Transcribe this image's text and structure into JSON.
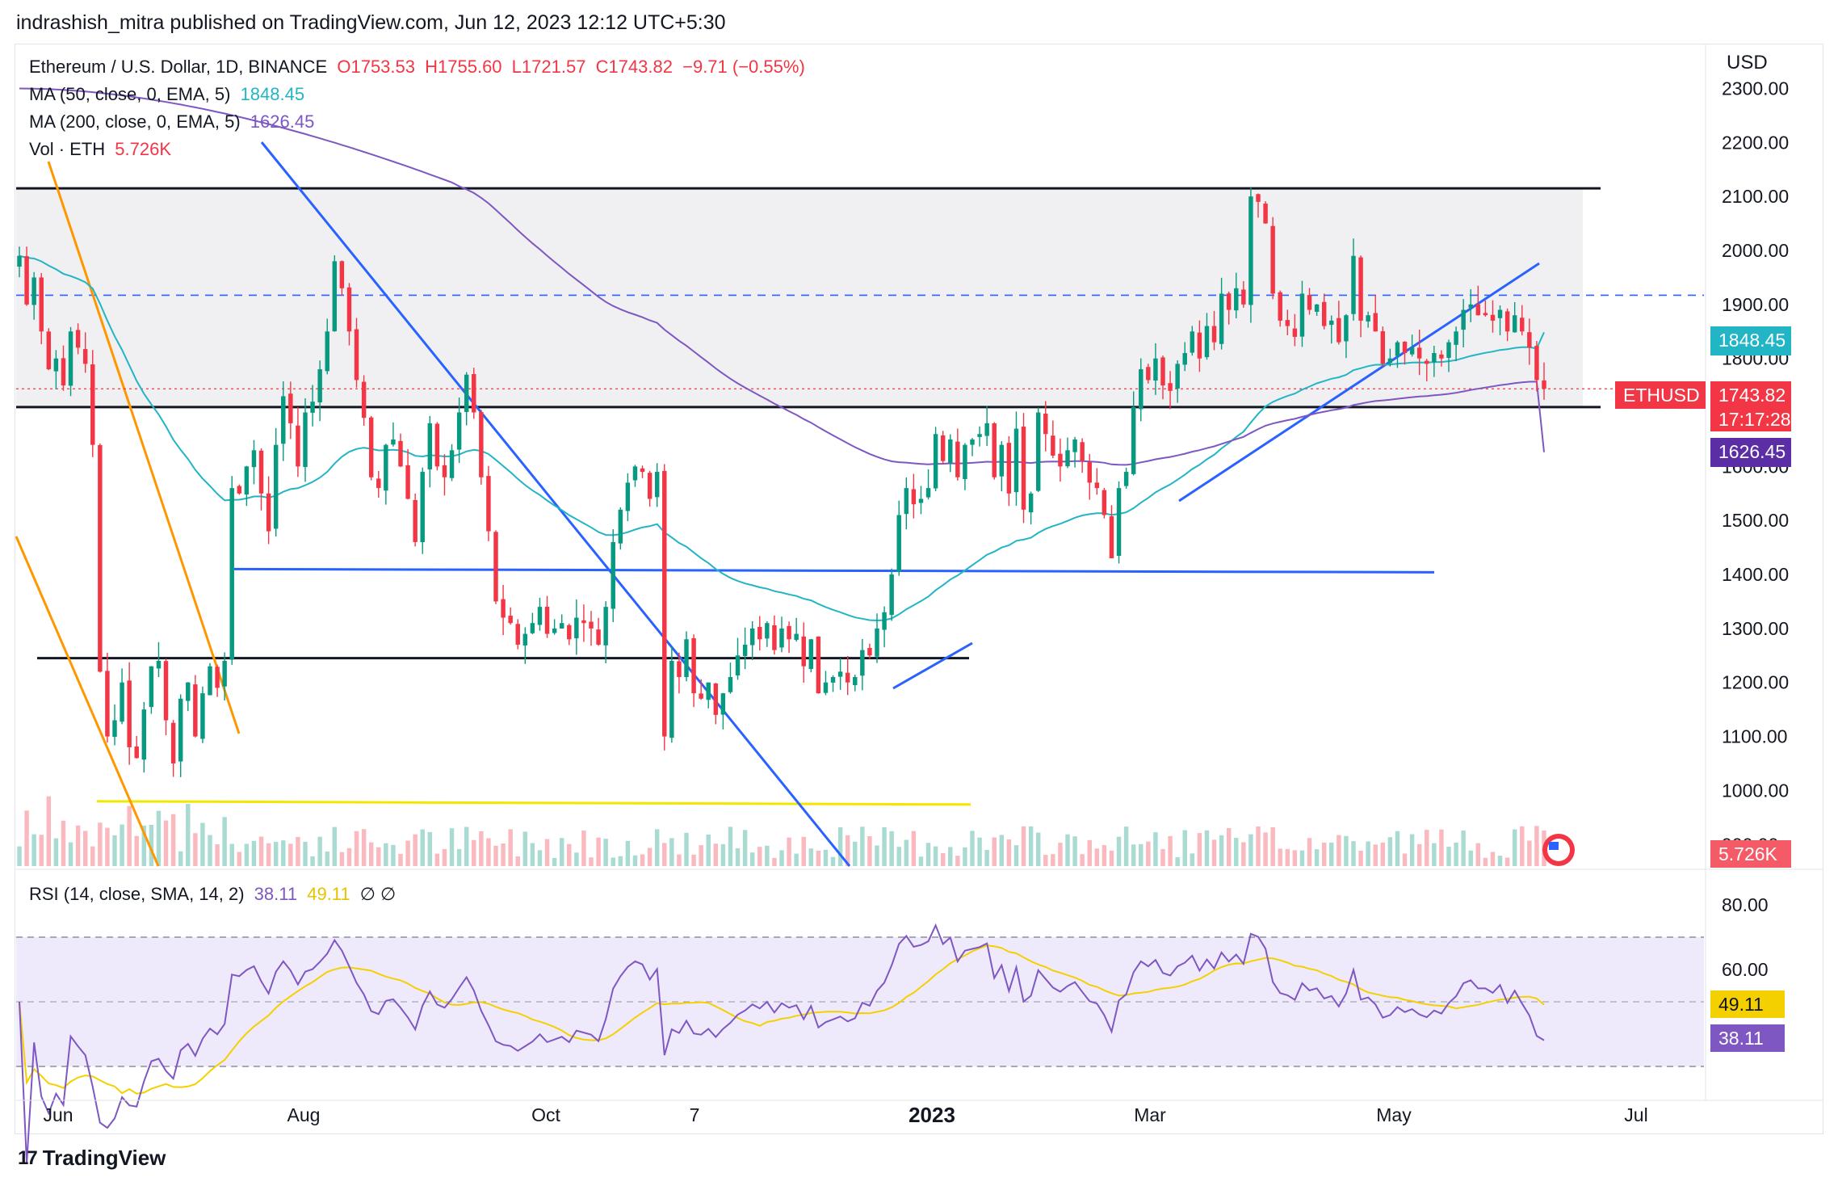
{
  "header": {
    "published": "indrashish_mitra published on TradingView.com, Jun 12, 2023 12:12 UTC+5:30"
  },
  "legend": {
    "symbol": "Ethereum / U.S. Dollar, 1D, BINANCE",
    "open": "O1753.53",
    "high": "H1755.60",
    "low": "L1721.57",
    "close": "C1743.82",
    "change": "−9.71 (−0.55%)",
    "ma50_label": "MA (50, close, 0, EMA, 5)",
    "ma50_value": "1848.45",
    "ma200_label": "MA (200, close, 0, EMA, 5)",
    "ma200_value": "1626.45",
    "vol_label": "Vol · ETH",
    "vol_value": "5.726K",
    "rsi_label": "RSI (14, close, SMA, 14, 2)",
    "rsi_value": "38.11",
    "rsi_ma_value": "49.11",
    "rsi_extra": "∅  ∅"
  },
  "price_axis": {
    "currency": "USD",
    "ticks": [
      "2300.00",
      "2200.00",
      "2100.00",
      "2000.00",
      "1900.00",
      "1800.00",
      "1700.00",
      "1600.00",
      "1500.00",
      "1400.00",
      "1300.00",
      "1200.00",
      "1100.00",
      "1000.00",
      "900.00"
    ]
  },
  "rsi_axis": {
    "ticks": [
      "80.00",
      "60.00"
    ]
  },
  "tags": {
    "ma50": "1848.45",
    "symbol": "ETHUSD",
    "last": "1743.82",
    "countdown": "17:17:28",
    "ma200": "1626.45",
    "volume": "5.726K",
    "rsi_ma": "49.11",
    "rsi": "38.11"
  },
  "time_axis": {
    "labels": [
      "Jun",
      "Aug",
      "Oct",
      "7",
      "2023",
      "Mar",
      "May",
      "Jul"
    ]
  },
  "brand": {
    "logo": "17",
    "name": "TradingView"
  },
  "colors": {
    "up": "#089981",
    "down": "#f23645",
    "ma50": "#22b5c5",
    "ma200": "#7e57c2",
    "rsi": "#7e57c2",
    "rsi_ma": "#f5d000",
    "trend_blue": "#2962ff",
    "trend_orange": "#ff9800",
    "support_yellow": "#f5e600",
    "range_fill": "#f0f0f3",
    "rsi_fill": "#efeafb"
  },
  "chart_data": {
    "type": "candlestick",
    "symbol": "ETHUSD",
    "timeframe": "1D",
    "exchange": "BINANCE",
    "price_range": [
      860,
      2380
    ],
    "rsi_range": [
      20,
      90
    ],
    "last_price": 1743.82,
    "range_top": 2115,
    "range_bottom": 1710,
    "resistance_dashed": 1917,
    "support_lines": [
      1410,
      1245,
      980
    ],
    "rsi_bands": [
      70,
      50,
      30
    ],
    "ma50_last": 1848.45,
    "ma200_last": 1626.45,
    "rsi_last": 38.11,
    "rsi_ma_last": 49.11,
    "closes": [
      1990,
      1900,
      1950,
      1850,
      1780,
      1800,
      1750,
      1850,
      1820,
      1790,
      1640,
      1220,
      1100,
      1130,
      1200,
      1080,
      1060,
      1150,
      1230,
      1240,
      1130,
      1050,
      1170,
      1200,
      1100,
      1180,
      1230,
      1190,
      1240,
      1560,
      1550,
      1600,
      1630,
      1550,
      1480,
      1640,
      1730,
      1680,
      1600,
      1700,
      1720,
      1780,
      1850,
      1980,
      1930,
      1850,
      1760,
      1690,
      1580,
      1560,
      1640,
      1650,
      1600,
      1540,
      1460,
      1590,
      1680,
      1600,
      1580,
      1630,
      1700,
      1770,
      1700,
      1580,
      1480,
      1350,
      1320,
      1310,
      1270,
      1290,
      1310,
      1340,
      1290,
      1300,
      1310,
      1280,
      1320,
      1310,
      1300,
      1270,
      1340,
      1460,
      1520,
      1570,
      1600,
      1590,
      1540,
      1590,
      1100,
      1240,
      1210,
      1280,
      1180,
      1170,
      1200,
      1140,
      1180,
      1210,
      1250,
      1270,
      1300,
      1280,
      1310,
      1260,
      1300,
      1280,
      1290,
      1230,
      1280,
      1180,
      1200,
      1210,
      1220,
      1200,
      1210,
      1260,
      1250,
      1300,
      1330,
      1400,
      1510,
      1560,
      1530,
      1540,
      1560,
      1660,
      1610,
      1650,
      1580,
      1640,
      1650,
      1660,
      1680,
      1580,
      1640,
      1550,
      1670,
      1520,
      1550,
      1700,
      1660,
      1620,
      1600,
      1630,
      1650,
      1610,
      1570,
      1560,
      1510,
      1430,
      1560,
      1590,
      1710,
      1780,
      1760,
      1800,
      1750,
      1740,
      1790,
      1810,
      1850,
      1800,
      1860,
      1830,
      1920,
      1890,
      1930,
      1900,
      2100,
      2090,
      2050,
      1920,
      1870,
      1860,
      1840,
      1920,
      1890,
      1900,
      1860,
      1870,
      1830,
      1880,
      1990,
      1870,
      1880,
      1850,
      1790,
      1800,
      1830,
      1810,
      1820,
      1800,
      1790,
      1810,
      1800,
      1830,
      1850,
      1890,
      1900,
      1880,
      1880,
      1870,
      1890,
      1850,
      1880,
      1850,
      1820,
      1760,
      1743.82
    ]
  }
}
